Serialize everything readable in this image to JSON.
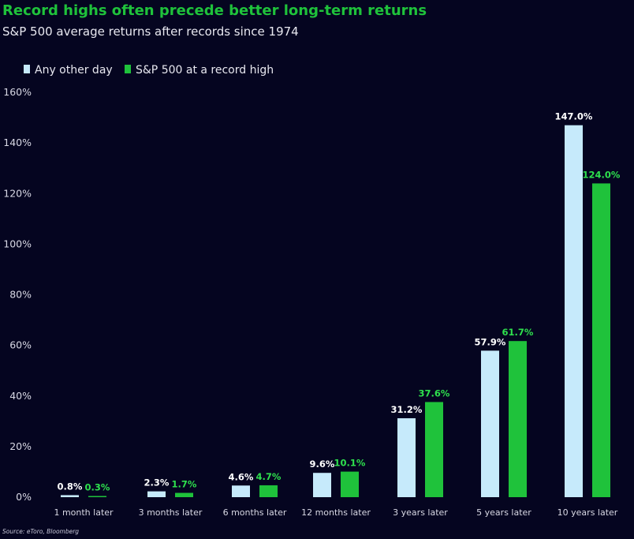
{
  "chart_data": {
    "type": "bar",
    "title": "Record highs often precede better long-term returns",
    "subtitle": "S&P 500 average returns after records since 1974",
    "categories": [
      "1 month later",
      "3 months later",
      "6 months later",
      "12 months later",
      "3 years later",
      "5 years later",
      "10 years later"
    ],
    "series": [
      {
        "name": "Any other day",
        "values": [
          0.8,
          2.3,
          4.6,
          9.6,
          31.2,
          57.9,
          147.0
        ],
        "labels": [
          "0.8%",
          "2.3%",
          "4.6%",
          "9.6%",
          "31.2%",
          "57.9%",
          "147.0%"
        ],
        "color": "#c6eafb",
        "label_color": "#ffffff"
      },
      {
        "name": "S&P 500 at a record high",
        "values": [
          0.3,
          1.7,
          4.7,
          10.1,
          37.6,
          61.7,
          124.0
        ],
        "labels": [
          "0.3%",
          "1.7%",
          "4.7%",
          "10.1%",
          "37.6%",
          "61.7%",
          "124.0%"
        ],
        "color": "#1fc23b",
        "label_color": "#2ee04d"
      }
    ],
    "ylim": [
      0,
      160
    ],
    "yticks": [
      0,
      20,
      40,
      60,
      80,
      100,
      120,
      140,
      160
    ],
    "ytick_labels": [
      "0%",
      "20%",
      "40%",
      "60%",
      "80%",
      "100%",
      "120%",
      "140%",
      "160%"
    ],
    "grid": false,
    "legend_position": "top-left",
    "source": "Source: eToro, Bloomberg",
    "title_color": "#1fc23b"
  }
}
